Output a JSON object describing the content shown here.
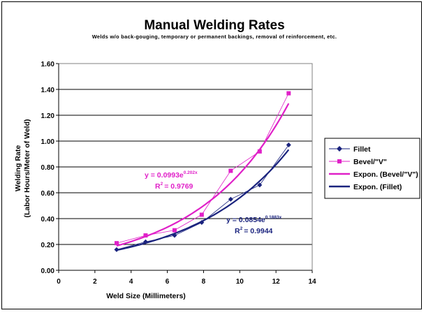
{
  "chart_data": {
    "type": "scatter",
    "title": "Manual Welding Rates",
    "subtitle": "Welds w/o back-gouging, temporary or permanent backings, removal of reinforcement, etc.",
    "xlabel": "Weld Size (Millimeters)",
    "ylabel_line1": "Welding Rate",
    "ylabel_line2": "(Labor Hours/Meter of Weld)",
    "xlim": [
      0,
      14
    ],
    "ylim": [
      0,
      1.6
    ],
    "x_ticks": [
      "0",
      "2",
      "4",
      "6",
      "8",
      "10",
      "12",
      "14"
    ],
    "y_ticks": [
      "0.00",
      "0.20",
      "0.40",
      "0.60",
      "0.80",
      "1.00",
      "1.20",
      "1.40",
      "1.60"
    ],
    "grid": "horizontal",
    "legend_position": "right",
    "series": [
      {
        "name": "Fillet",
        "color": "#1a237e",
        "marker": "diamond",
        "x": [
          3.2,
          4.8,
          6.4,
          7.9,
          9.5,
          11.1,
          12.7
        ],
        "y": [
          0.16,
          0.22,
          0.27,
          0.37,
          0.55,
          0.66,
          0.97
        ]
      },
      {
        "name": "Bevel/\"V\"",
        "color": "#e020c8",
        "marker": "square",
        "x": [
          3.2,
          4.8,
          6.4,
          7.9,
          9.5,
          11.1,
          12.7
        ],
        "y": [
          0.21,
          0.27,
          0.31,
          0.43,
          0.77,
          0.92,
          1.37
        ]
      }
    ],
    "trendlines": [
      {
        "name": "Expon. (Bevel/\"V\")",
        "color": "#e020c8",
        "a": 0.0993,
        "b": 0.202,
        "equation_prefix": "y = 0.0993e",
        "equation_exp": "0.202x",
        "r2_value": "= 0.9769"
      },
      {
        "name": "Expon. (Fillet)",
        "color": "#1a237e",
        "a": 0.0854,
        "b": 0.1883,
        "equation_prefix": "y = 0.0854e",
        "equation_exp": "0.1883x",
        "r2_value": "= 0.9944"
      }
    ],
    "r2_label": "R",
    "r2_sup": "2"
  }
}
